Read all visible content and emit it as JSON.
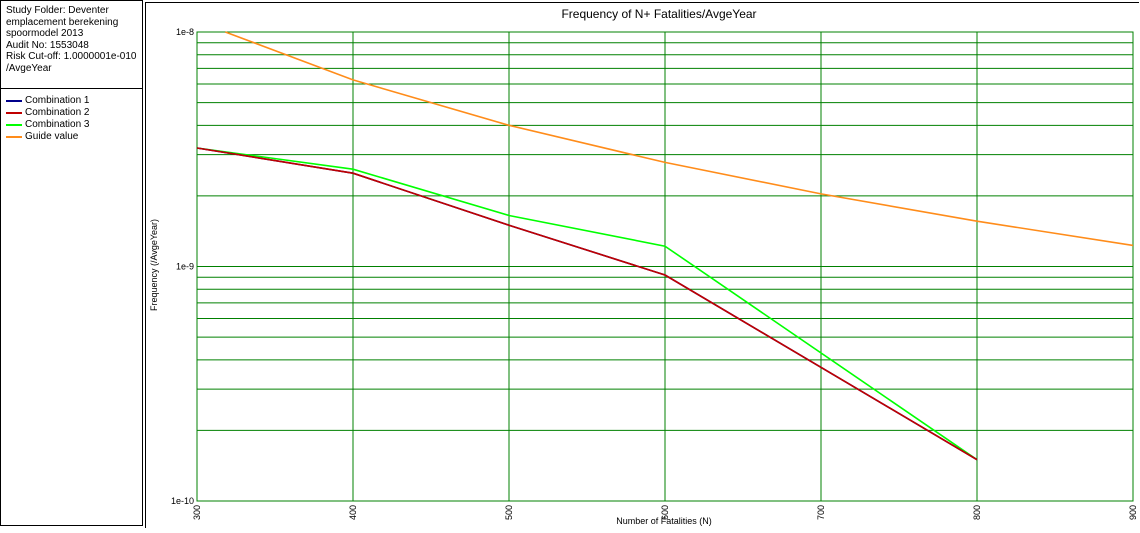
{
  "info": {
    "lines": [
      "Study Folder: Deventer",
      "emplacement berekening",
      "spoormodel 2013",
      "Audit No: 1553048",
      "Risk Cut-off: 1.0000001e-010",
      "/AvgeYear"
    ]
  },
  "legend": [
    {
      "label": "Combination 1",
      "color": "#00008b"
    },
    {
      "label": "Combination 2",
      "color": "#c00000"
    },
    {
      "label": "Combination 3",
      "color": "#00ff00"
    },
    {
      "label": "Guide value",
      "color": "#ff8c1a"
    }
  ],
  "chart_data": {
    "type": "line",
    "title": "Frequency of N+ Fatalities/AvgeYear",
    "xlabel": "Number of Fatalities (N)",
    "ylabel": "Frequency (/AvgeYear)",
    "xlim": [
      300,
      900
    ],
    "ylim": [
      1e-10,
      1e-08
    ],
    "yscale": "log",
    "grid": true,
    "grid_color": "#008000",
    "x_ticks": [
      300,
      400,
      500,
      600,
      700,
      800,
      900
    ],
    "x_tick_labels": [
      "300",
      "400",
      "500",
      "600",
      "700",
      "800",
      "900"
    ],
    "y_ticks": [
      1e-10,
      1e-09,
      1e-08
    ],
    "y_tick_labels": [
      "1e-10",
      "1e-9",
      "1e-8"
    ],
    "series": [
      {
        "name": "Combination 1",
        "color": "#00008b",
        "x": [
          300,
          400,
          500,
          600,
          800
        ],
        "y": [
          3.2e-09,
          2.5e-09,
          1.5e-09,
          9.2e-10,
          1.5e-10
        ]
      },
      {
        "name": "Combination 2",
        "color": "#c00000",
        "x": [
          300,
          400,
          500,
          600,
          800
        ],
        "y": [
          3.2e-09,
          2.5e-09,
          1.5e-09,
          9.2e-10,
          1.5e-10
        ]
      },
      {
        "name": "Combination 3",
        "color": "#00ff00",
        "x": [
          300,
          400,
          500,
          600,
          800
        ],
        "y": [
          3.2e-09,
          2.6e-09,
          1.65e-09,
          1.22e-09,
          1.5e-10
        ]
      },
      {
        "name": "Guide value",
        "color": "#ff8c1a",
        "x": [
          300,
          400,
          500,
          600,
          700,
          800,
          900
        ],
        "y": [
          1.11e-08,
          6.25e-09,
          4e-09,
          2.78e-09,
          2.04e-09,
          1.56e-09,
          1.23e-09
        ]
      }
    ]
  }
}
